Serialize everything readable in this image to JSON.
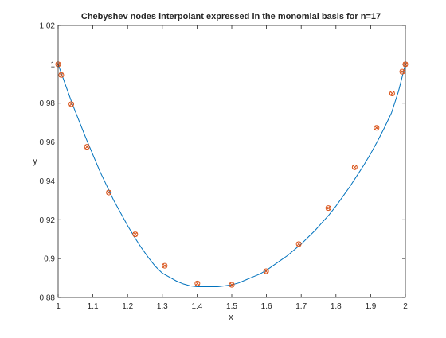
{
  "chart_data": {
    "type": "line",
    "title": "Chebyshev nodes interpolant  expressed in the monomial basis for n=17",
    "xlabel": "x",
    "ylabel": "y",
    "xlim": [
      1,
      2
    ],
    "ylim": [
      0.88,
      1.02
    ],
    "x_ticks": [
      "1",
      "1.1",
      "1.2",
      "1.3",
      "1.4",
      "1.5",
      "1.6",
      "1.7",
      "1.8",
      "1.9",
      "2"
    ],
    "x_tick_values": [
      1,
      1.1,
      1.2,
      1.3,
      1.4,
      1.5,
      1.6,
      1.7,
      1.8,
      1.9,
      2
    ],
    "y_ticks": [
      "0.88",
      "0.9",
      "0.92",
      "0.94",
      "0.96",
      "0.98",
      "1",
      "1.02"
    ],
    "y_tick_values": [
      0.88,
      0.9,
      0.92,
      0.94,
      0.96,
      0.98,
      1.0,
      1.02
    ],
    "grid": false,
    "box": true,
    "series": [
      {
        "style": "line",
        "color": "#0072BD",
        "x": [
          1.0,
          1.02,
          1.04,
          1.06,
          1.08,
          1.1,
          1.12,
          1.14,
          1.16,
          1.18,
          1.2,
          1.22,
          1.24,
          1.26,
          1.28,
          1.3,
          1.32,
          1.34,
          1.36,
          1.38,
          1.4,
          1.42,
          1.44,
          1.46,
          1.48,
          1.5,
          1.52,
          1.54,
          1.56,
          1.58,
          1.6,
          1.62,
          1.64,
          1.66,
          1.68,
          1.7,
          1.72,
          1.74,
          1.76,
          1.78,
          1.8,
          1.82,
          1.84,
          1.86,
          1.88,
          1.9,
          1.92,
          1.94,
          1.96,
          1.98,
          2.0
        ],
        "y": [
          1.0,
          0.99,
          0.98,
          0.971,
          0.962,
          0.9535,
          0.945,
          0.9375,
          0.93,
          0.9235,
          0.917,
          0.911,
          0.9055,
          0.9005,
          0.896,
          0.8925,
          0.8905,
          0.8885,
          0.887,
          0.886,
          0.8855,
          0.8855,
          0.8855,
          0.8855,
          0.886,
          0.8865,
          0.8875,
          0.889,
          0.8905,
          0.892,
          0.894,
          0.8965,
          0.899,
          0.9015,
          0.9045,
          0.9075,
          0.911,
          0.9145,
          0.9185,
          0.9225,
          0.927,
          0.932,
          0.937,
          0.9425,
          0.948,
          0.954,
          0.9605,
          0.9675,
          0.975,
          0.986,
          1.0
        ]
      },
      {
        "style": "markers",
        "marker": "o",
        "color": "#D95319",
        "x": [
          1.0,
          1.009,
          1.038,
          1.083,
          1.146,
          1.222,
          1.307,
          1.401,
          1.5,
          1.599,
          1.693,
          1.778,
          1.854,
          1.917,
          1.962,
          1.991,
          2.0
        ],
        "y": [
          1.0,
          0.9945,
          0.9795,
          0.9575,
          0.934,
          0.9125,
          0.8963,
          0.8872,
          0.8865,
          0.8935,
          0.9075,
          0.926,
          0.947,
          0.9673,
          0.985,
          0.9962,
          1.0
        ]
      },
      {
        "style": "markers",
        "marker": "x",
        "color": "#D95319",
        "x": [
          1.0,
          1.009,
          1.038,
          1.083,
          1.146,
          1.222,
          1.307,
          1.401,
          1.5,
          1.599,
          1.693,
          1.778,
          1.854,
          1.917,
          1.962,
          1.991,
          2.0
        ],
        "y": [
          1.0,
          0.9945,
          0.9795,
          0.9575,
          0.934,
          0.9125,
          0.8963,
          0.8872,
          0.8865,
          0.8935,
          0.9075,
          0.926,
          0.947,
          0.9673,
          0.985,
          0.9962,
          1.0
        ]
      }
    ]
  }
}
